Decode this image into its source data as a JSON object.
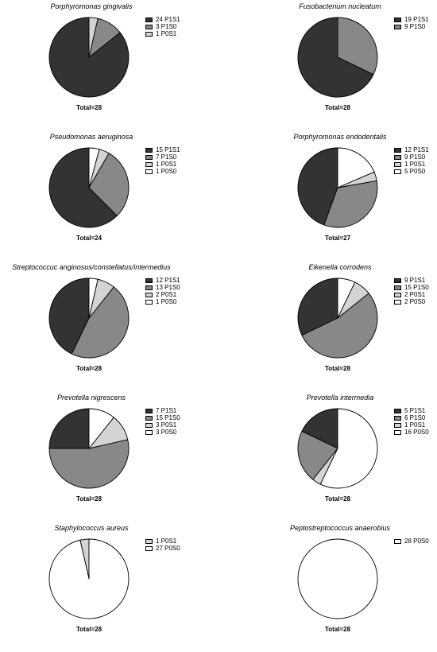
{
  "colors": {
    "P1S1": "#333333",
    "P1S0": "#888888",
    "P0S1": "#d4d4d4",
    "P0S0": "#ffffff"
  },
  "chart_data": [
    {
      "type": "pie",
      "title": "Porphyromonas gingivalis",
      "total": "Total=28",
      "slices": [
        {
          "label": "24 P1S1",
          "key": "P1S1",
          "value": 24
        },
        {
          "label": "3 P1S0",
          "key": "P1S0",
          "value": 3
        },
        {
          "label": "1 P0S1",
          "key": "P0S1",
          "value": 1
        }
      ]
    },
    {
      "type": "pie",
      "title": "Fusobacterium nucleatum",
      "total": "Total=28",
      "slices": [
        {
          "label": "19 P1S1",
          "key": "P1S1",
          "value": 19
        },
        {
          "label": "9 P1S0",
          "key": "P1S0",
          "value": 9
        }
      ]
    },
    {
      "type": "pie",
      "title": "Pseudomonas aeruginosa",
      "total": "Total=24",
      "slices": [
        {
          "label": "15 P1S1",
          "key": "P1S1",
          "value": 15
        },
        {
          "label": "7 P1S0",
          "key": "P1S0",
          "value": 7
        },
        {
          "label": "1 P0S1",
          "key": "P0S1",
          "value": 1
        },
        {
          "label": "1 P0S0",
          "key": "P0S0",
          "value": 1
        }
      ]
    },
    {
      "type": "pie",
      "title": "Porphyromonas endodentalis",
      "total": "Total=27",
      "slices": [
        {
          "label": "12 P1S1",
          "key": "P1S1",
          "value": 12
        },
        {
          "label": "9 P1S0",
          "key": "P1S0",
          "value": 9
        },
        {
          "label": "1 P0S1",
          "key": "P0S1",
          "value": 1
        },
        {
          "label": "5 P0S0",
          "key": "P0S0",
          "value": 5
        }
      ]
    },
    {
      "type": "pie",
      "title": "Streptococcuc anginosus/constellatus/intermedius",
      "total": "Total=28",
      "slices": [
        {
          "label": "12 P1S1",
          "key": "P1S1",
          "value": 12
        },
        {
          "label": "13 P1S0",
          "key": "P1S0",
          "value": 13
        },
        {
          "label": "2 P0S1",
          "key": "P0S1",
          "value": 2
        },
        {
          "label": "1 P0S0",
          "key": "P0S0",
          "value": 1
        }
      ]
    },
    {
      "type": "pie",
      "title": "Eikenella corrodens",
      "total": "Total=28",
      "slices": [
        {
          "label": "9 P1S1",
          "key": "P1S1",
          "value": 9
        },
        {
          "label": "15 P1S0",
          "key": "P1S0",
          "value": 15
        },
        {
          "label": "2 P0S1",
          "key": "P0S1",
          "value": 2
        },
        {
          "label": "2 P0S0",
          "key": "P0S0",
          "value": 2
        }
      ]
    },
    {
      "type": "pie",
      "title": "Prevotella nigrescens",
      "total": "Total=28",
      "slices": [
        {
          "label": "7 P1S1",
          "key": "P1S1",
          "value": 7
        },
        {
          "label": "15 P1S0",
          "key": "P1S0",
          "value": 15
        },
        {
          "label": "3 P0S1",
          "key": "P0S1",
          "value": 3
        },
        {
          "label": "3 P0S0",
          "key": "P0S0",
          "value": 3
        }
      ]
    },
    {
      "type": "pie",
      "title": "Prevotella intermedia",
      "total": "Total=28",
      "slices": [
        {
          "label": "5 P1S1",
          "key": "P1S1",
          "value": 5
        },
        {
          "label": "6 P1S0",
          "key": "P1S0",
          "value": 6
        },
        {
          "label": "1 P0S1",
          "key": "P0S1",
          "value": 1
        },
        {
          "label": "16 P0S0",
          "key": "P0S0",
          "value": 16
        }
      ]
    },
    {
      "type": "pie",
      "title": "Staphylococcus aureus",
      "total": "Total=28",
      "slices": [
        {
          "label": "1 P0S1",
          "key": "P0S1",
          "value": 1
        },
        {
          "label": "27 P0S0",
          "key": "P0S0",
          "value": 27
        }
      ]
    },
    {
      "type": "pie",
      "title": "Peptostreptococcus anaerobius",
      "total": "Total=28",
      "slices": [
        {
          "label": "28 P0S0",
          "key": "P0S0",
          "value": 28
        }
      ]
    }
  ]
}
